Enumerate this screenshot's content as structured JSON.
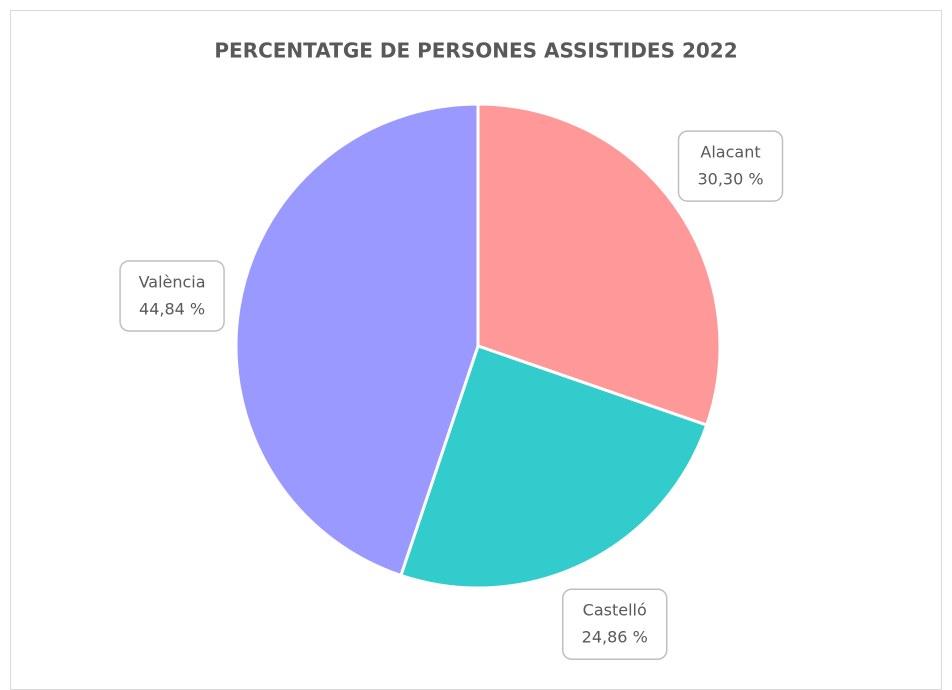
{
  "chart_data": {
    "type": "pie",
    "title": "PERCENTATGE DE PERSONES ASSISTIDES 2022",
    "categories": [
      "Alacant",
      "Castelló",
      "València"
    ],
    "values": [
      30.3,
      24.86,
      44.84
    ],
    "value_labels": [
      "30,30 %",
      "24,86 %",
      "44,84 %"
    ],
    "colors": [
      "#ff9999",
      "#33cccc",
      "#9999ff"
    ]
  }
}
